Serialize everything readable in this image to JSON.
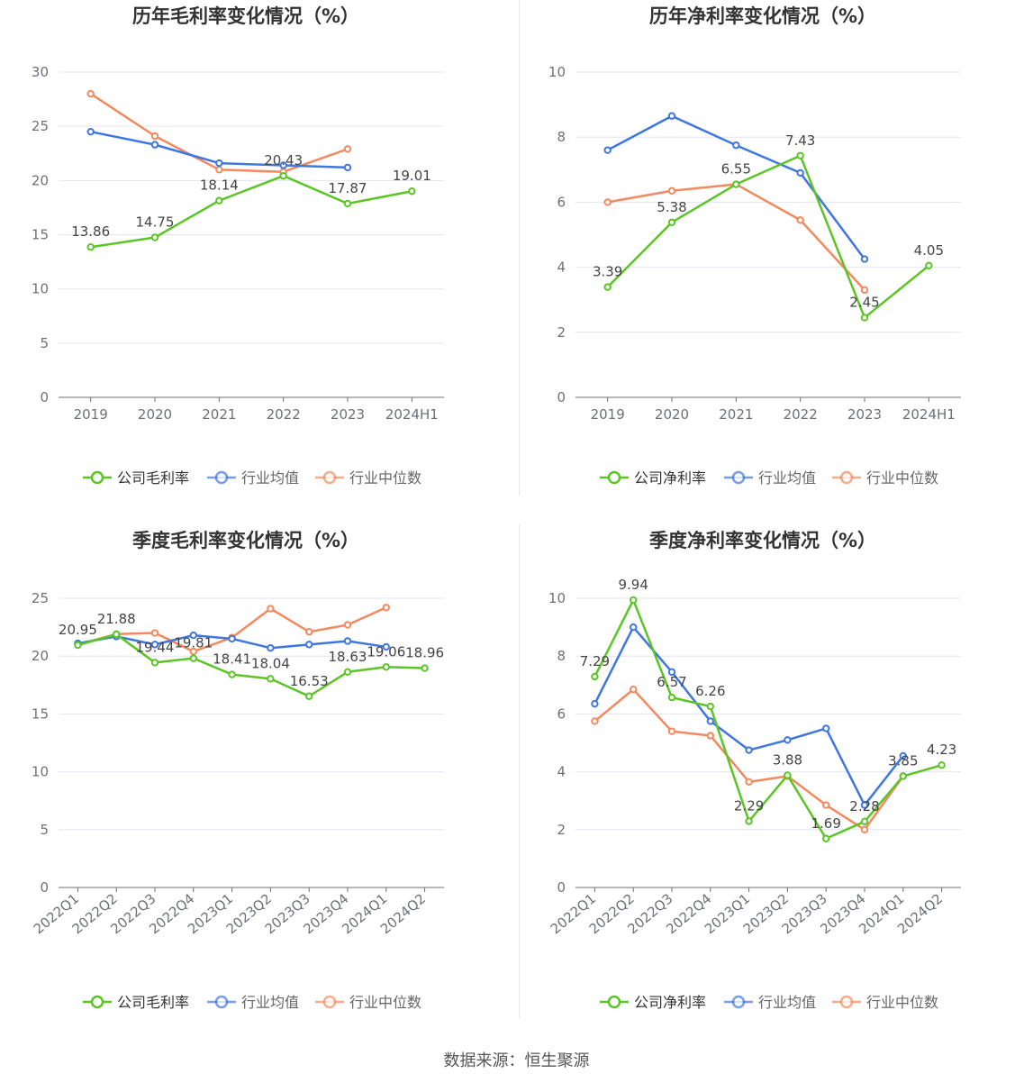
{
  "footer": {
    "source": "数据来源：恒生聚源"
  },
  "colors": {
    "company": "#5cc526",
    "average": "#3f76e0",
    "median": "#f4895f"
  },
  "chart_data": [
    {
      "type": "line",
      "title": "历年毛利率变化情况（%）",
      "categories": [
        "2019",
        "2020",
        "2021",
        "2022",
        "2023",
        "2024H1"
      ],
      "ylim": [
        0,
        30
      ],
      "yticks": [
        0,
        5,
        10,
        15,
        20,
        25,
        30
      ],
      "grid": true,
      "legend": "bottom",
      "series": [
        {
          "name": "公司毛利率",
          "values": [
            13.86,
            14.75,
            18.14,
            20.43,
            17.87,
            19.01
          ],
          "labels": [
            "13.86",
            "14.75",
            "18.14",
            "20.43",
            "17.87",
            "19.01"
          ]
        },
        {
          "name": "行业均值",
          "values": [
            24.5,
            23.3,
            21.6,
            21.4,
            21.2,
            null
          ]
        },
        {
          "name": "行业中位数",
          "values": [
            28.0,
            24.1,
            21.0,
            20.8,
            22.9,
            null
          ]
        }
      ]
    },
    {
      "type": "line",
      "title": "历年净利率变化情况（%）",
      "categories": [
        "2019",
        "2020",
        "2021",
        "2022",
        "2023",
        "2024H1"
      ],
      "ylim": [
        0,
        10
      ],
      "yticks": [
        0,
        2,
        4,
        6,
        8,
        10
      ],
      "grid": true,
      "legend": "bottom",
      "series": [
        {
          "name": "公司净利率",
          "values": [
            3.39,
            5.38,
            6.55,
            7.43,
            2.45,
            4.05
          ],
          "labels": [
            "3.39",
            "5.38",
            "6.55",
            "7.43",
            "2.45",
            "4.05"
          ]
        },
        {
          "name": "行业均值",
          "values": [
            7.6,
            8.65,
            7.75,
            6.9,
            4.25,
            null
          ]
        },
        {
          "name": "行业中位数",
          "values": [
            6.0,
            6.35,
            6.55,
            5.45,
            3.3,
            null
          ]
        }
      ]
    },
    {
      "type": "line",
      "title": "季度毛利率变化情况（%）",
      "categories": [
        "2022Q1",
        "2022Q2",
        "2022Q3",
        "2022Q4",
        "2023Q1",
        "2023Q2",
        "2023Q3",
        "2023Q4",
        "2024Q1",
        "2024Q2"
      ],
      "ylim": [
        0,
        25
      ],
      "yticks": [
        0,
        5,
        10,
        15,
        20,
        25
      ],
      "grid": true,
      "legend": "bottom",
      "series": [
        {
          "name": "公司毛利率",
          "values": [
            20.95,
            21.88,
            19.44,
            19.81,
            18.41,
            18.04,
            16.53,
            18.63,
            19.06,
            18.96
          ],
          "labels": [
            "20.95",
            "21.88",
            "19.44",
            "19.81",
            "18.41",
            "18.04",
            "16.53",
            "18.63",
            "19.06",
            "18.96"
          ]
        },
        {
          "name": "行业均值",
          "values": [
            21.1,
            21.7,
            21.0,
            21.8,
            21.5,
            20.7,
            21.0,
            21.3,
            20.8,
            null
          ]
        },
        {
          "name": "行业中位数",
          "values": [
            21.0,
            21.9,
            22.0,
            20.4,
            21.6,
            24.1,
            22.1,
            22.7,
            24.2,
            null
          ]
        }
      ]
    },
    {
      "type": "line",
      "title": "季度净利率变化情况（%）",
      "categories": [
        "2022Q1",
        "2022Q2",
        "2022Q3",
        "2022Q4",
        "2023Q1",
        "2023Q2",
        "2023Q3",
        "2023Q4",
        "2024Q1",
        "2024Q2"
      ],
      "ylim": [
        0,
        10
      ],
      "yticks": [
        0,
        2,
        4,
        6,
        8,
        10
      ],
      "grid": true,
      "legend": "bottom",
      "series": [
        {
          "name": "公司净利率",
          "values": [
            7.29,
            9.94,
            6.57,
            6.26,
            2.29,
            3.88,
            1.69,
            2.28,
            3.85,
            4.23
          ],
          "labels": [
            "7.29",
            "9.94",
            "6.57",
            "6.26",
            "2.29",
            "3.88",
            "1.69",
            "2.28",
            "3.85",
            "4.23"
          ]
        },
        {
          "name": "行业均值",
          "values": [
            6.35,
            9.0,
            7.45,
            5.75,
            4.75,
            5.1,
            5.5,
            2.85,
            4.55,
            null
          ]
        },
        {
          "name": "行业中位数",
          "values": [
            5.75,
            6.85,
            5.4,
            5.25,
            3.65,
            3.85,
            2.85,
            2.0,
            3.85,
            null
          ]
        }
      ]
    }
  ]
}
